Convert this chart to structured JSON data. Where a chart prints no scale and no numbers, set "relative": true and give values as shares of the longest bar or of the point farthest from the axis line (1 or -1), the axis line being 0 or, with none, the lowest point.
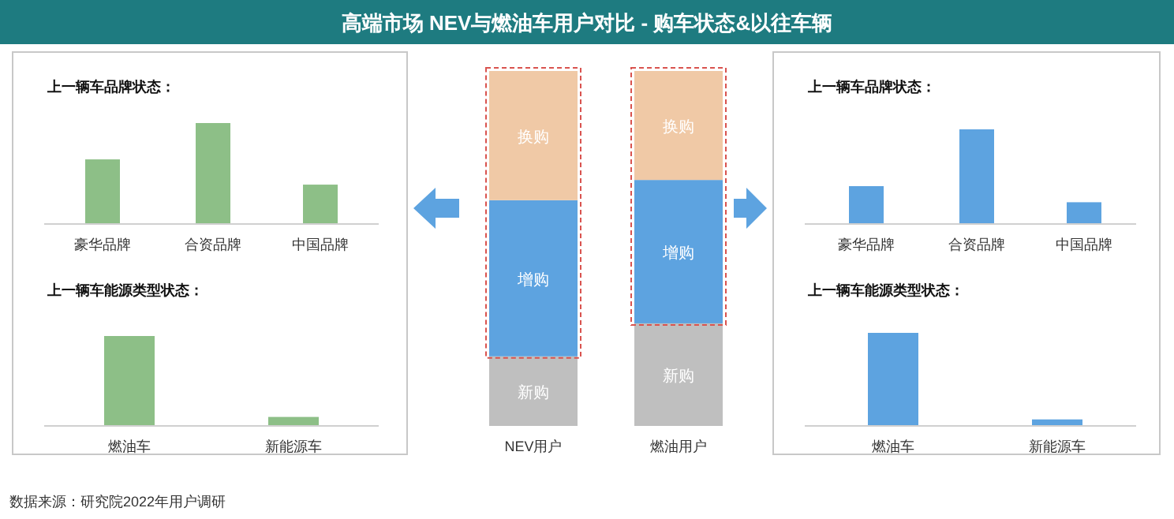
{
  "chart_data": [
    {
      "type": "bar",
      "title": "上一辆车品牌状态：",
      "categories": [
        "豪华品牌",
        "合资品牌",
        "中国品牌"
      ],
      "values": [
        0.64,
        1,
        0.39
      ],
      "color": "#8dbf87",
      "relative": true
    },
    {
      "type": "bar",
      "title": "上一辆车能源类型状态：",
      "categories": [
        "燃油车",
        "新能源车"
      ],
      "values": [
        1,
        0.1
      ],
      "color": "#8dbf87",
      "relative": true
    },
    {
      "type": "bar",
      "title": "高端市场 NEV与燃油车用户对比 - 购车状态&以往车辆",
      "categories": [
        "NEV用户",
        "燃油用户"
      ],
      "stacked": true,
      "relative": true,
      "series": [
        {
          "name": "新购",
          "color": "#bfbfbf",
          "values": [
            0.196,
            0.289
          ]
        },
        {
          "name": "增购",
          "color": "#5da3e0",
          "values": [
            0.44,
            0.404
          ]
        },
        {
          "name": "换购",
          "color": "#f0c9a6",
          "values": [
            0.364,
            0.307
          ]
        }
      ],
      "annotations": [
        "数据来源：研究院2022年用户调研"
      ]
    },
    {
      "type": "bar",
      "title": "上一辆车品牌状态：",
      "categories": [
        "豪华品牌",
        "合资品牌",
        "中国品牌"
      ],
      "values": [
        0.4,
        1,
        0.23
      ],
      "color": "#5da3e0",
      "relative": true
    },
    {
      "type": "bar",
      "title": "上一辆车能源类型状态：",
      "categories": [
        "燃油车",
        "新能源车"
      ],
      "values": [
        1,
        0.07
      ],
      "color": "#5da3e0",
      "relative": true
    }
  ]
}
